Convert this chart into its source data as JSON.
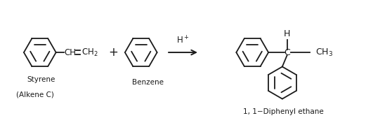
{
  "bg_color": "#ffffff",
  "text_color": "#1a1a1a",
  "label_styrene": "Styrene",
  "label_alkene": "(Alkene C)",
  "label_benzene": "Benzene",
  "label_catalyst": "H$^+$",
  "label_product": "1, 1−Diphenyl ethane",
  "figsize": [
    5.21,
    1.69
  ],
  "dpi": 100
}
